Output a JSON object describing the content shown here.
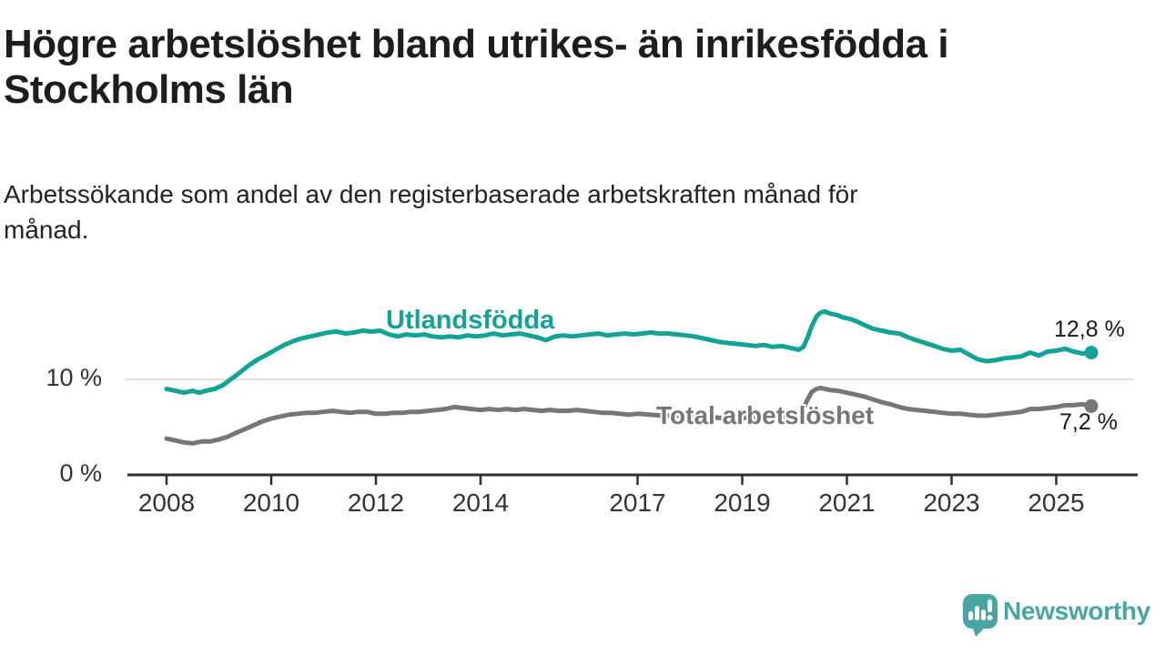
{
  "header": {
    "title": "Högre arbetslöshet bland utrikes- än inrikesfödda i Stockholms län",
    "title_lines": [
      "Högre arbetslöshet bland utrikes- än inrikesfödda i",
      "Stockholms län"
    ],
    "subtitle": "Arbetssökande som andel av den registerbaserade arbetskraften månad för månad.",
    "subtitle_lines": [
      "Arbetssökande som andel av den registerbaserade arbetskraften månad för",
      "månad."
    ]
  },
  "colors": {
    "accent_teal": "#12a296",
    "series_gray": "#76767a",
    "logo_teal": "#48a5a2",
    "grid": "#e0e0e0",
    "axis": "#2f2f2f",
    "text": "#1d1d1d"
  },
  "footer": {
    "brand": "Newsworthy"
  },
  "chart_data": {
    "type": "line",
    "unit": "%",
    "x_ticks": [
      2008,
      2010,
      2012,
      2014,
      2017,
      2019,
      2021,
      2023,
      2025
    ],
    "y_ticks": [
      {
        "value": 0,
        "label": "0 %"
      },
      {
        "value": 10,
        "label": "10 %"
      }
    ],
    "x_range_years": [
      2008.0,
      2025.67
    ],
    "ylim": [
      0,
      18
    ],
    "grid": "horizontal-10-only",
    "series": [
      {
        "id": "utlandsfodda",
        "name": "Utlandsfödda",
        "color": "#12a296",
        "end_label": "12,8 %",
        "end_value": 12.8,
        "points": [
          [
            2008.0,
            9.0
          ],
          [
            2008.17,
            8.8
          ],
          [
            2008.33,
            8.6
          ],
          [
            2008.5,
            8.8
          ],
          [
            2008.62,
            8.6
          ],
          [
            2008.75,
            8.8
          ],
          [
            2008.92,
            9.0
          ],
          [
            2009.08,
            9.4
          ],
          [
            2009.25,
            10.1
          ],
          [
            2009.42,
            10.8
          ],
          [
            2009.58,
            11.5
          ],
          [
            2009.75,
            12.1
          ],
          [
            2009.92,
            12.6
          ],
          [
            2010.08,
            13.1
          ],
          [
            2010.25,
            13.6
          ],
          [
            2010.42,
            14.0
          ],
          [
            2010.58,
            14.3
          ],
          [
            2010.75,
            14.5
          ],
          [
            2010.92,
            14.7
          ],
          [
            2011.08,
            14.9
          ],
          [
            2011.25,
            15.0
          ],
          [
            2011.42,
            14.8
          ],
          [
            2011.58,
            14.9
          ],
          [
            2011.75,
            15.1
          ],
          [
            2011.92,
            15.0
          ],
          [
            2012.08,
            15.1
          ],
          [
            2012.25,
            14.7
          ],
          [
            2012.42,
            14.5
          ],
          [
            2012.58,
            14.7
          ],
          [
            2012.75,
            14.6
          ],
          [
            2012.92,
            14.7
          ],
          [
            2013.08,
            14.5
          ],
          [
            2013.25,
            14.4
          ],
          [
            2013.42,
            14.5
          ],
          [
            2013.58,
            14.4
          ],
          [
            2013.75,
            14.6
          ],
          [
            2013.92,
            14.5
          ],
          [
            2014.08,
            14.6
          ],
          [
            2014.25,
            14.8
          ],
          [
            2014.42,
            14.6
          ],
          [
            2014.58,
            14.7
          ],
          [
            2014.75,
            14.8
          ],
          [
            2014.92,
            14.6
          ],
          [
            2015.08,
            14.4
          ],
          [
            2015.25,
            14.1
          ],
          [
            2015.42,
            14.5
          ],
          [
            2015.58,
            14.6
          ],
          [
            2015.75,
            14.5
          ],
          [
            2015.92,
            14.6
          ],
          [
            2016.08,
            14.7
          ],
          [
            2016.25,
            14.8
          ],
          [
            2016.42,
            14.6
          ],
          [
            2016.58,
            14.7
          ],
          [
            2016.75,
            14.8
          ],
          [
            2016.92,
            14.7
          ],
          [
            2017.08,
            14.8
          ],
          [
            2017.25,
            14.9
          ],
          [
            2017.42,
            14.8
          ],
          [
            2017.58,
            14.8
          ],
          [
            2017.75,
            14.7
          ],
          [
            2017.92,
            14.6
          ],
          [
            2018.08,
            14.5
          ],
          [
            2018.25,
            14.3
          ],
          [
            2018.42,
            14.1
          ],
          [
            2018.58,
            13.9
          ],
          [
            2018.75,
            13.8
          ],
          [
            2018.92,
            13.7
          ],
          [
            2019.08,
            13.6
          ],
          [
            2019.25,
            13.5
          ],
          [
            2019.42,
            13.6
          ],
          [
            2019.58,
            13.4
          ],
          [
            2019.75,
            13.5
          ],
          [
            2019.92,
            13.3
          ],
          [
            2020.0,
            13.2
          ],
          [
            2020.08,
            13.1
          ],
          [
            2020.17,
            13.4
          ],
          [
            2020.25,
            14.4
          ],
          [
            2020.33,
            15.6
          ],
          [
            2020.42,
            16.6
          ],
          [
            2020.5,
            17.0
          ],
          [
            2020.58,
            17.1
          ],
          [
            2020.67,
            16.9
          ],
          [
            2020.75,
            16.8
          ],
          [
            2020.83,
            16.7
          ],
          [
            2020.92,
            16.5
          ],
          [
            2021.08,
            16.3
          ],
          [
            2021.17,
            16.1
          ],
          [
            2021.33,
            15.7
          ],
          [
            2021.5,
            15.3
          ],
          [
            2021.67,
            15.1
          ],
          [
            2021.83,
            14.9
          ],
          [
            2022.0,
            14.8
          ],
          [
            2022.17,
            14.4
          ],
          [
            2022.33,
            14.1
          ],
          [
            2022.5,
            13.8
          ],
          [
            2022.67,
            13.5
          ],
          [
            2022.83,
            13.2
          ],
          [
            2023.0,
            13.0
          ],
          [
            2023.17,
            13.1
          ],
          [
            2023.33,
            12.6
          ],
          [
            2023.5,
            12.1
          ],
          [
            2023.67,
            11.9
          ],
          [
            2023.83,
            12.0
          ],
          [
            2024.0,
            12.2
          ],
          [
            2024.17,
            12.3
          ],
          [
            2024.33,
            12.4
          ],
          [
            2024.5,
            12.8
          ],
          [
            2024.67,
            12.5
          ],
          [
            2024.83,
            12.9
          ],
          [
            2025.0,
            13.0
          ],
          [
            2025.17,
            13.2
          ],
          [
            2025.33,
            12.9
          ],
          [
            2025.5,
            12.7
          ],
          [
            2025.67,
            12.8
          ]
        ]
      },
      {
        "id": "total",
        "name": "Total arbetslöshet",
        "color": "#76767a",
        "end_label": "7,2 %",
        "end_value": 7.2,
        "points": [
          [
            2008.0,
            3.8
          ],
          [
            2008.17,
            3.6
          ],
          [
            2008.33,
            3.4
          ],
          [
            2008.5,
            3.3
          ],
          [
            2008.67,
            3.5
          ],
          [
            2008.83,
            3.5
          ],
          [
            2009.0,
            3.7
          ],
          [
            2009.17,
            4.0
          ],
          [
            2009.33,
            4.4
          ],
          [
            2009.5,
            4.8
          ],
          [
            2009.67,
            5.2
          ],
          [
            2009.83,
            5.6
          ],
          [
            2010.0,
            5.9
          ],
          [
            2010.17,
            6.1
          ],
          [
            2010.33,
            6.3
          ],
          [
            2010.5,
            6.4
          ],
          [
            2010.67,
            6.5
          ],
          [
            2010.83,
            6.5
          ],
          [
            2011.0,
            6.6
          ],
          [
            2011.17,
            6.7
          ],
          [
            2011.33,
            6.6
          ],
          [
            2011.5,
            6.5
          ],
          [
            2011.67,
            6.6
          ],
          [
            2011.83,
            6.6
          ],
          [
            2012.0,
            6.4
          ],
          [
            2012.17,
            6.4
          ],
          [
            2012.33,
            6.5
          ],
          [
            2012.5,
            6.5
          ],
          [
            2012.67,
            6.6
          ],
          [
            2012.83,
            6.6
          ],
          [
            2013.0,
            6.7
          ],
          [
            2013.17,
            6.8
          ],
          [
            2013.33,
            6.9
          ],
          [
            2013.5,
            7.1
          ],
          [
            2013.67,
            7.0
          ],
          [
            2013.83,
            6.9
          ],
          [
            2014.0,
            6.8
          ],
          [
            2014.17,
            6.9
          ],
          [
            2014.33,
            6.8
          ],
          [
            2014.5,
            6.9
          ],
          [
            2014.67,
            6.8
          ],
          [
            2014.83,
            6.9
          ],
          [
            2015.0,
            6.8
          ],
          [
            2015.17,
            6.7
          ],
          [
            2015.33,
            6.8
          ],
          [
            2015.5,
            6.7
          ],
          [
            2015.67,
            6.7
          ],
          [
            2015.83,
            6.8
          ],
          [
            2016.0,
            6.7
          ],
          [
            2016.17,
            6.6
          ],
          [
            2016.33,
            6.5
          ],
          [
            2016.5,
            6.5
          ],
          [
            2016.67,
            6.4
          ],
          [
            2016.83,
            6.3
          ],
          [
            2017.0,
            6.4
          ],
          [
            2017.25,
            6.3
          ],
          [
            2017.5,
            6.2
          ],
          [
            2017.75,
            6.2
          ],
          [
            2018.0,
            6.1
          ],
          [
            2018.25,
            6.0
          ],
          [
            2018.5,
            6.0
          ],
          [
            2018.75,
            5.9
          ],
          [
            2019.0,
            6.0
          ],
          [
            2019.25,
            5.9
          ],
          [
            2019.5,
            6.0
          ],
          [
            2019.75,
            6.1
          ],
          [
            2020.0,
            6.3
          ],
          [
            2020.08,
            6.5
          ],
          [
            2020.17,
            7.0
          ],
          [
            2020.25,
            7.9
          ],
          [
            2020.33,
            8.7
          ],
          [
            2020.42,
            9.0
          ],
          [
            2020.5,
            9.1
          ],
          [
            2020.58,
            9.0
          ],
          [
            2020.67,
            8.9
          ],
          [
            2020.83,
            8.8
          ],
          [
            2021.0,
            8.6
          ],
          [
            2021.17,
            8.4
          ],
          [
            2021.33,
            8.2
          ],
          [
            2021.5,
            7.9
          ],
          [
            2021.67,
            7.6
          ],
          [
            2021.83,
            7.4
          ],
          [
            2022.0,
            7.1
          ],
          [
            2022.17,
            6.9
          ],
          [
            2022.33,
            6.8
          ],
          [
            2022.5,
            6.7
          ],
          [
            2022.67,
            6.6
          ],
          [
            2022.83,
            6.5
          ],
          [
            2023.0,
            6.4
          ],
          [
            2023.17,
            6.4
          ],
          [
            2023.33,
            6.3
          ],
          [
            2023.5,
            6.2
          ],
          [
            2023.67,
            6.2
          ],
          [
            2023.83,
            6.3
          ],
          [
            2024.0,
            6.4
          ],
          [
            2024.17,
            6.5
          ],
          [
            2024.33,
            6.6
          ],
          [
            2024.5,
            6.9
          ],
          [
            2024.67,
            6.9
          ],
          [
            2024.83,
            7.0
          ],
          [
            2025.0,
            7.1
          ],
          [
            2025.17,
            7.3
          ],
          [
            2025.33,
            7.3
          ],
          [
            2025.5,
            7.4
          ],
          [
            2025.67,
            7.2
          ]
        ]
      }
    ]
  }
}
